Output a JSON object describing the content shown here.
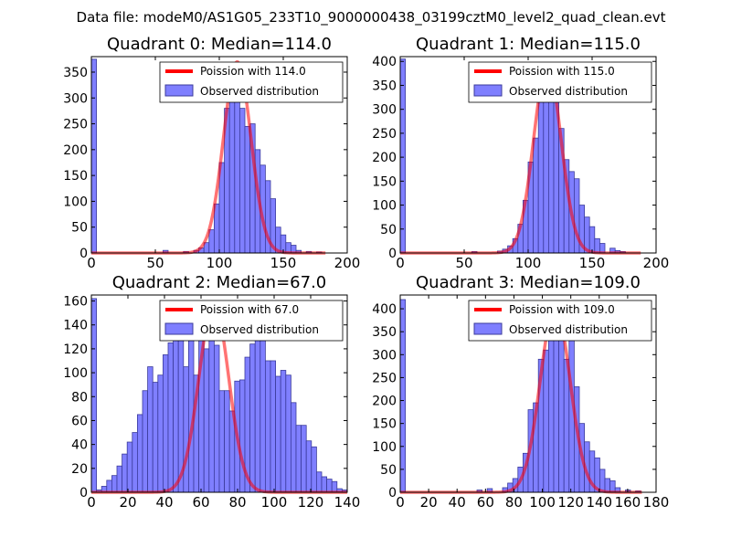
{
  "suptitle": "Data file: modeM0/AS1G05_233T10_9000000438_03199cztM0_level2_quad_clean.evt",
  "colors": {
    "bar_fill": "#7f7fff",
    "bar_edge": "#3b3b9b",
    "line": "#ff0000",
    "axis": "#000000"
  },
  "chart_data": [
    {
      "type": "bar",
      "title": "Quadrant 0: Median=114.0",
      "xlim": [
        0,
        200
      ],
      "ylim": [
        0,
        380
      ],
      "xticks": [
        0,
        50,
        100,
        150,
        200
      ],
      "xtick_labels": [
        "0",
        "50",
        "100",
        "150",
        "200"
      ],
      "yticks": [
        0,
        50,
        100,
        150,
        200,
        250,
        300,
        350
      ],
      "ytick_labels": [
        "0",
        "50",
        "100",
        "150",
        "200",
        "250",
        "300",
        "350"
      ],
      "bin_width": 4,
      "bins": [
        [
          0,
          375
        ],
        [
          56,
          5
        ],
        [
          72,
          3
        ],
        [
          80,
          5
        ],
        [
          84,
          10
        ],
        [
          88,
          20
        ],
        [
          92,
          45
        ],
        [
          96,
          95
        ],
        [
          100,
          175
        ],
        [
          104,
          280
        ],
        [
          108,
          300
        ],
        [
          112,
          365
        ],
        [
          116,
          280
        ],
        [
          120,
          245
        ],
        [
          124,
          250
        ],
        [
          128,
          200
        ],
        [
          132,
          170
        ],
        [
          136,
          140
        ],
        [
          140,
          105
        ],
        [
          144,
          50
        ],
        [
          148,
          35
        ],
        [
          152,
          20
        ],
        [
          156,
          15
        ],
        [
          160,
          5
        ],
        [
          168,
          3
        ],
        [
          176,
          2
        ]
      ],
      "line": {
        "label": "Poission with 114.0",
        "mean": 114.0,
        "peak": 370,
        "x_range": [
          0,
          183
        ]
      },
      "legend": {
        "line_label": "Poission with 114.0",
        "bar_label": "Observed distribution",
        "loc": "upper right"
      }
    },
    {
      "type": "bar",
      "title": "Quadrant 1: Median=115.0",
      "xlim": [
        0,
        200
      ],
      "ylim": [
        0,
        410
      ],
      "xticks": [
        0,
        50,
        100,
        150,
        200
      ],
      "xtick_labels": [
        "0",
        "50",
        "100",
        "150",
        "200"
      ],
      "yticks": [
        0,
        50,
        100,
        150,
        200,
        250,
        300,
        350,
        400
      ],
      "ytick_labels": [
        "0",
        "50",
        "100",
        "150",
        "200",
        "250",
        "300",
        "350",
        "400"
      ],
      "bin_width": 4,
      "bins": [
        [
          0,
          405
        ],
        [
          56,
          3
        ],
        [
          76,
          4
        ],
        [
          80,
          8
        ],
        [
          84,
          15
        ],
        [
          88,
          30
        ],
        [
          92,
          60
        ],
        [
          96,
          110
        ],
        [
          100,
          190
        ],
        [
          104,
          240
        ],
        [
          108,
          320
        ],
        [
          112,
          340
        ],
        [
          116,
          345
        ],
        [
          120,
          325
        ],
        [
          124,
          260
        ],
        [
          128,
          195
        ],
        [
          132,
          170
        ],
        [
          136,
          155
        ],
        [
          140,
          100
        ],
        [
          144,
          75
        ],
        [
          148,
          55
        ],
        [
          152,
          30
        ],
        [
          156,
          20
        ],
        [
          164,
          10
        ],
        [
          168,
          5
        ],
        [
          172,
          3
        ]
      ],
      "line": {
        "label": "Poission with 115.0",
        "mean": 115.0,
        "peak": 392,
        "x_range": [
          0,
          188
        ]
      },
      "legend": {
        "line_label": "Poission with 115.0",
        "bar_label": "Observed distribution",
        "loc": "upper right"
      }
    },
    {
      "type": "bar",
      "title": "Quadrant 2: Median=67.0",
      "xlim": [
        0,
        140
      ],
      "ylim": [
        0,
        165
      ],
      "xticks": [
        0,
        20,
        40,
        60,
        80,
        100,
        120,
        140
      ],
      "xtick_labels": [
        "0",
        "20",
        "40",
        "60",
        "80",
        "100",
        "120",
        "140"
      ],
      "yticks": [
        0,
        20,
        40,
        60,
        80,
        100,
        120,
        140,
        160
      ],
      "ytick_labels": [
        "0",
        "20",
        "40",
        "60",
        "80",
        "100",
        "120",
        "140",
        "160"
      ],
      "bin_width": 2.8,
      "bins": [
        [
          0,
          162
        ],
        [
          2.8,
          2
        ],
        [
          5.6,
          5
        ],
        [
          8.4,
          10
        ],
        [
          11.2,
          14
        ],
        [
          14,
          22
        ],
        [
          16.8,
          32
        ],
        [
          19.6,
          42
        ],
        [
          22.4,
          50
        ],
        [
          25.2,
          65
        ],
        [
          28,
          85
        ],
        [
          30.8,
          105
        ],
        [
          33.6,
          92
        ],
        [
          36.4,
          98
        ],
        [
          39.2,
          115
        ],
        [
          42,
          125
        ],
        [
          44.8,
          145
        ],
        [
          47.6,
          130
        ],
        [
          50.4,
          105
        ],
        [
          53.2,
          145
        ],
        [
          56,
          98
        ],
        [
          58.8,
          138
        ],
        [
          61.6,
          120
        ],
        [
          64.4,
          140
        ],
        [
          67.2,
          123
        ],
        [
          70,
          85
        ],
        [
          72.8,
          85
        ],
        [
          75.6,
          68
        ],
        [
          78.4,
          93
        ],
        [
          81.2,
          94
        ],
        [
          84,
          113
        ],
        [
          86.8,
          124
        ],
        [
          89.6,
          137
        ],
        [
          92.4,
          138
        ],
        [
          95.2,
          110
        ],
        [
          98,
          110
        ],
        [
          100.8,
          97
        ],
        [
          103.6,
          102
        ],
        [
          106.4,
          98
        ],
        [
          109.2,
          75
        ],
        [
          112,
          56
        ],
        [
          114.8,
          56
        ],
        [
          117.6,
          43
        ],
        [
          120.4,
          38
        ],
        [
          123.2,
          17
        ],
        [
          126,
          13
        ],
        [
          128.8,
          11
        ],
        [
          131.6,
          9
        ],
        [
          134.4,
          3
        ],
        [
          137.2,
          2
        ]
      ],
      "line": {
        "label": "Poission with 67.0",
        "mean": 67.0,
        "peak": 158,
        "x_range": [
          0,
          140
        ]
      },
      "legend": {
        "line_label": "Poission with 67.0",
        "bar_label": "Observed distribution",
        "loc": "upper right"
      }
    },
    {
      "type": "bar",
      "title": "Quadrant 3: Median=109.0",
      "xlim": [
        0,
        180
      ],
      "ylim": [
        0,
        430
      ],
      "xticks": [
        0,
        20,
        40,
        60,
        80,
        100,
        120,
        140,
        160,
        180
      ],
      "xtick_labels": [
        "0",
        "20",
        "40",
        "60",
        "80",
        "100",
        "120",
        "140",
        "160",
        "180"
      ],
      "yticks": [
        0,
        50,
        100,
        150,
        200,
        250,
        300,
        350,
        400
      ],
      "ytick_labels": [
        "0",
        "50",
        "100",
        "150",
        "200",
        "250",
        "300",
        "350",
        "400"
      ],
      "bin_width": 3.6,
      "bins": [
        [
          0,
          420
        ],
        [
          54,
          5
        ],
        [
          61.2,
          8
        ],
        [
          72,
          10
        ],
        [
          75.6,
          20
        ],
        [
          79.2,
          30
        ],
        [
          82.8,
          55
        ],
        [
          86.4,
          85
        ],
        [
          90,
          180
        ],
        [
          93.6,
          195
        ],
        [
          97.2,
          290
        ],
        [
          100.8,
          310
        ],
        [
          104.4,
          350
        ],
        [
          108,
          405
        ],
        [
          111.6,
          400
        ],
        [
          115.2,
          290
        ],
        [
          118.8,
          350
        ],
        [
          122.4,
          230
        ],
        [
          126,
          150
        ],
        [
          129.6,
          110
        ],
        [
          133.2,
          90
        ],
        [
          136.8,
          75
        ],
        [
          140.4,
          50
        ],
        [
          144,
          30
        ],
        [
          147.6,
          25
        ],
        [
          151.2,
          10
        ],
        [
          158.4,
          5
        ],
        [
          165.6,
          3
        ]
      ],
      "line": {
        "label": "Poission with 109.0",
        "mean": 109.0,
        "peak": 405,
        "x_range": [
          0,
          170
        ]
      },
      "legend": {
        "line_label": "Poission with 109.0",
        "bar_label": "Observed distribution",
        "loc": "upper right"
      }
    }
  ]
}
